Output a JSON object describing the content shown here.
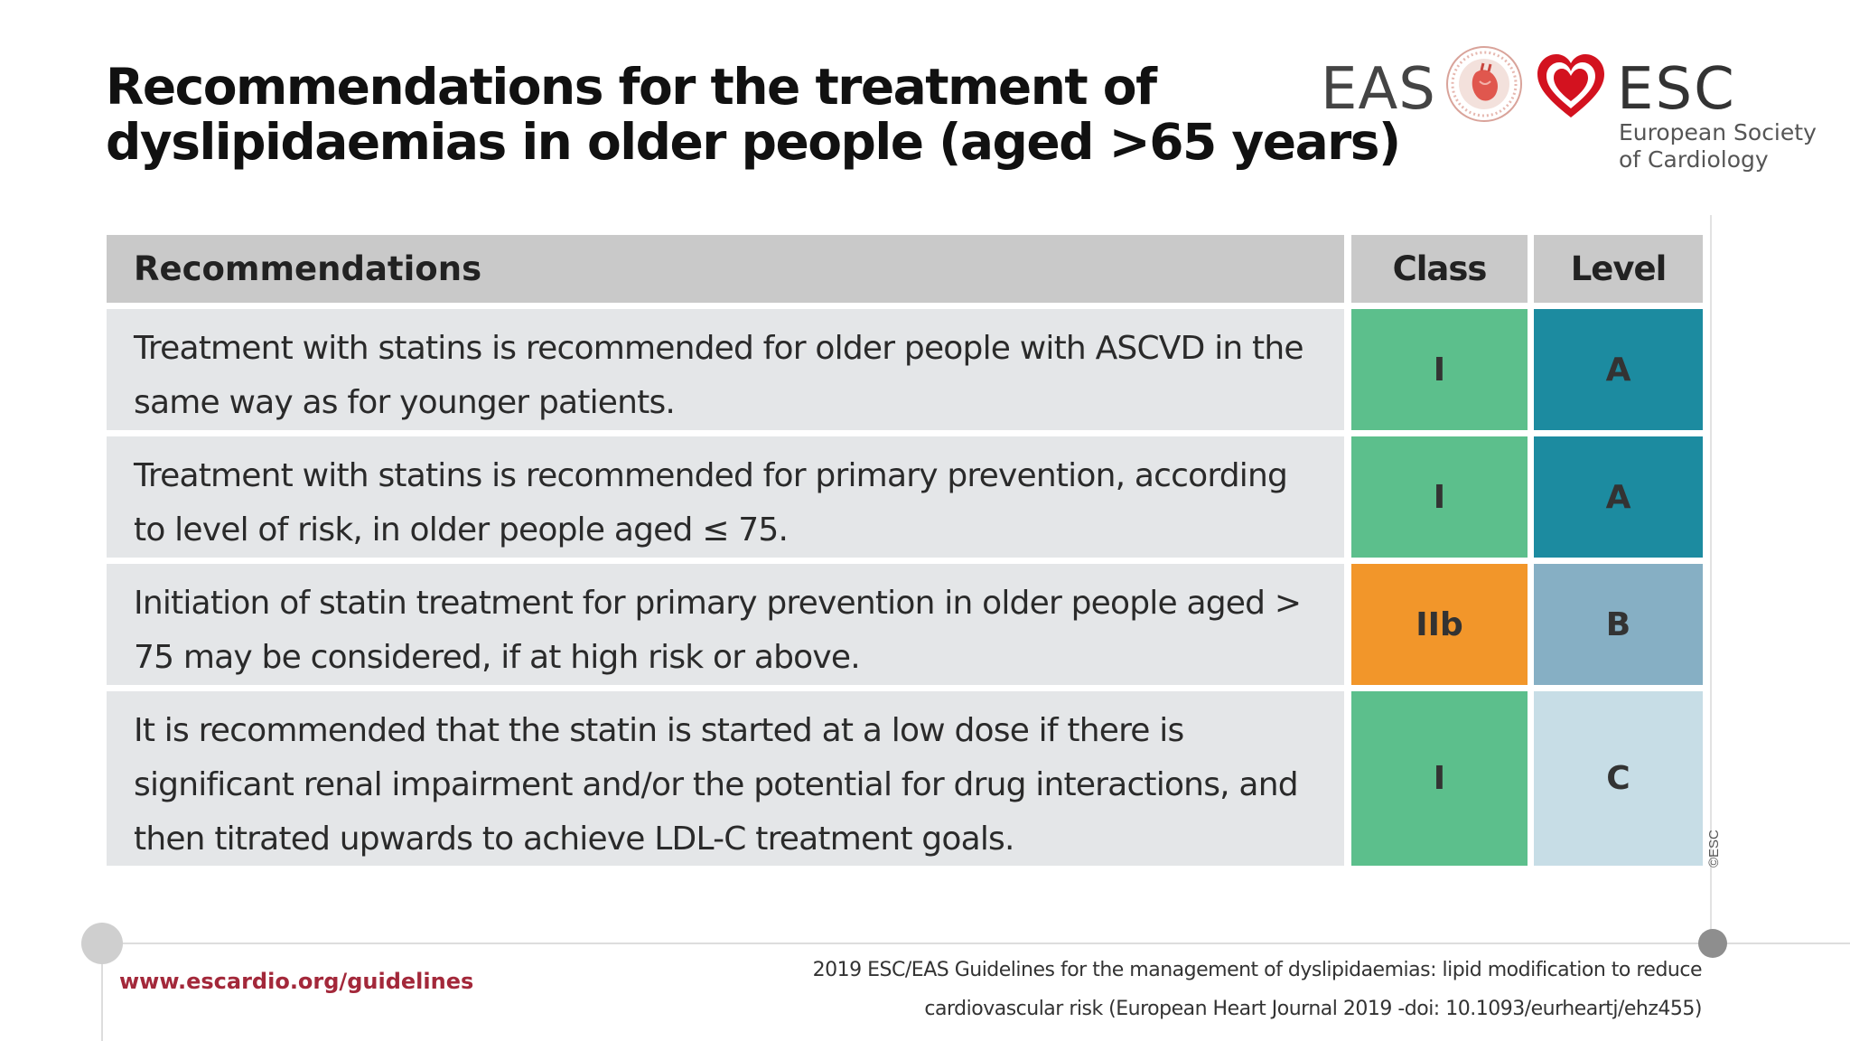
{
  "slide": {
    "title_lines": [
      "Recommendations  for the treatment of",
      "dyslipidaemias in older people (aged >65 years)"
    ]
  },
  "logos": {
    "eas_label": "EAS",
    "esc_label": "ESC",
    "esc_subtitle_lines": [
      "European Society",
      "of Cardiology"
    ]
  },
  "table": {
    "headers": {
      "recommendations": "Recommendations",
      "class": "Class",
      "level": "Level"
    },
    "rows": [
      {
        "text": "Treatment with statins is recommended for older people with ASCVD in the same way as for younger patients.",
        "class": "I",
        "level": "A",
        "class_color": "#5cbf8c",
        "level_color": "#1c8ba0"
      },
      {
        "text": "Treatment  with statins  is recommended  for primary  prevention,  according to level of risk, in older people aged ≤ 75.",
        "class": "I",
        "level": "A",
        "class_color": "#5cbf8c",
        "level_color": "#1c8ba0"
      },
      {
        "text": "Initiation of statin treatment for primary prevention in older people aged > 75 may be considered, if at high risk or above.",
        "class": "IIb",
        "level": "B",
        "class_color": "#f2962a",
        "level_color": "#86afc4"
      },
      {
        "text": "It is recommended that the statin is started at a low dose if there is significant renal impairment and/or the potential for drug interactions, and then titrated upwards to achieve LDL-C treatment goals.",
        "class": "I",
        "level": "C",
        "class_color": "#5cbf8c",
        "level_color": "#c7dde6"
      }
    ]
  },
  "copyright": "©ESC",
  "footer": {
    "url": "www.escardio.org/guidelines",
    "citation_lines": [
      "2019 ESC/EAS Guidelines for the management of dyslipidaemias: lipid modification to reduce",
      "cardiovascular risk (European Heart Journal 2019 -doi: 10.1093/eurheartj/ehz455)"
    ]
  }
}
